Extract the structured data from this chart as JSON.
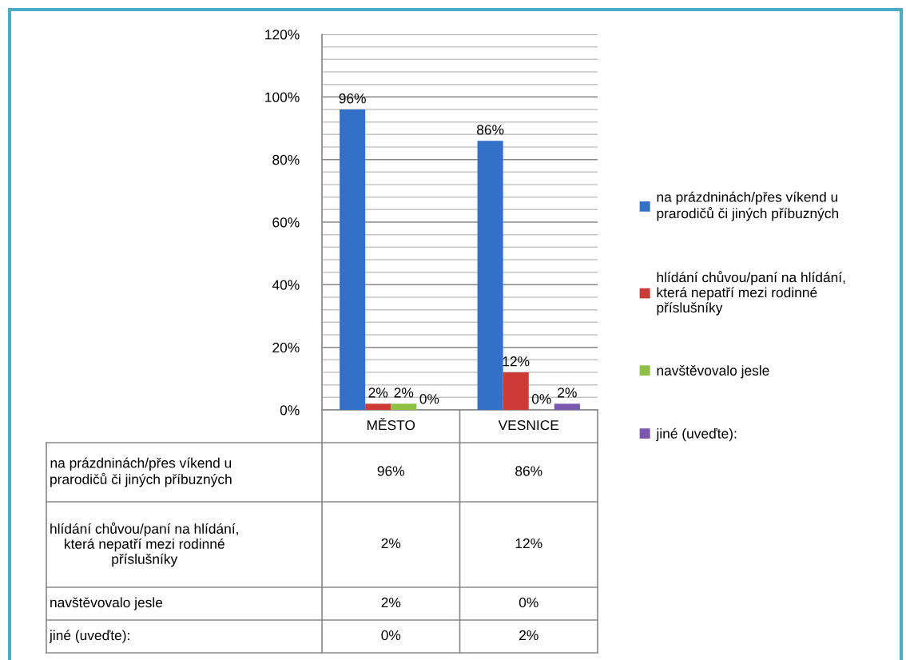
{
  "chart_data": {
    "type": "bar",
    "categories": [
      "MĚSTO",
      "VESNICE"
    ],
    "series": [
      {
        "name": "na prázdninách/přes víkend u\nprarodičů či jiných příbuzných",
        "color": "#3370c8",
        "values": [
          96,
          86
        ],
        "value_labels": [
          "96%",
          "86%"
        ]
      },
      {
        "name": "hlídání chůvou/paní na hlídání,\nkterá nepatří mezi rodinné\npříslušníky",
        "color": "#cc3b35",
        "values": [
          2,
          12
        ],
        "value_labels": [
          "2%",
          "12%"
        ]
      },
      {
        "name": "navštěvovalo jesle",
        "color": "#8dbf45",
        "values": [
          2,
          0
        ],
        "value_labels": [
          "2%",
          "0%"
        ]
      },
      {
        "name": "jiné (uveďte):",
        "color": "#7a58b0",
        "values": [
          0,
          2
        ],
        "value_labels": [
          "0%",
          "2%"
        ]
      }
    ],
    "ylim": [
      0,
      120
    ],
    "yticks": [
      {
        "value": 0,
        "label": "0%"
      },
      {
        "value": 4,
        "label": null
      },
      {
        "value": 8,
        "label": null
      },
      {
        "value": 12,
        "label": null
      },
      {
        "value": 16,
        "label": null
      },
      {
        "value": 20,
        "label": "20%"
      },
      {
        "value": 24,
        "label": null
      },
      {
        "value": 28,
        "label": null
      },
      {
        "value": 32,
        "label": null
      },
      {
        "value": 36,
        "label": null
      },
      {
        "value": 40,
        "label": "40%"
      },
      {
        "value": 44,
        "label": null
      },
      {
        "value": 48,
        "label": null
      },
      {
        "value": 52,
        "label": null
      },
      {
        "value": 56,
        "label": null
      },
      {
        "value": 60,
        "label": "60%"
      },
      {
        "value": 64,
        "label": null
      },
      {
        "value": 68,
        "label": null
      },
      {
        "value": 72,
        "label": null
      },
      {
        "value": 76,
        "label": null
      },
      {
        "value": 80,
        "label": "80%"
      },
      {
        "value": 84,
        "label": null
      },
      {
        "value": 88,
        "label": null
      },
      {
        "value": 92,
        "label": null
      },
      {
        "value": 96,
        "label": null
      },
      {
        "value": 100,
        "label": "100%"
      },
      {
        "value": 104,
        "label": null
      },
      {
        "value": 108,
        "label": null
      },
      {
        "value": 112,
        "label": null
      },
      {
        "value": 116,
        "label": null
      },
      {
        "value": 120,
        "label": "120%"
      }
    ],
    "grid": "y",
    "legend": "right"
  }
}
